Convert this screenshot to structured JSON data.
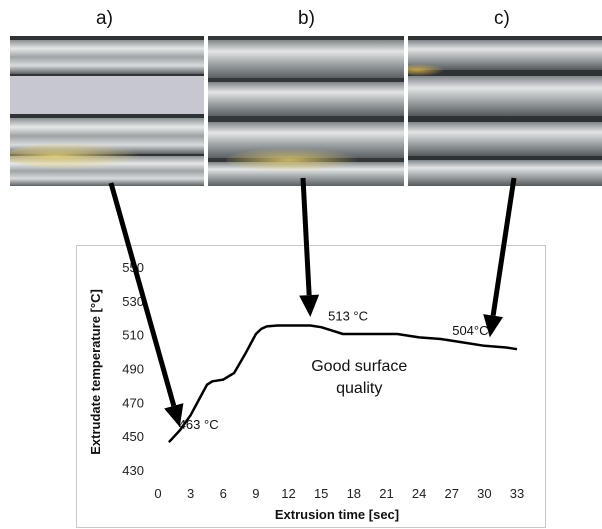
{
  "panels": [
    {
      "label": "a)",
      "photo": "extruded-profile-surface"
    },
    {
      "label": "b)",
      "photo": "extruded-profile-surface"
    },
    {
      "label": "c)",
      "photo": "extruded-profile-surface"
    }
  ],
  "colors": {
    "curve": "#000000",
    "arrow": "#000000",
    "frame": "#c8c8c8",
    "metal_dark": "#5a5f63",
    "metal_light": "#e6e8e8",
    "highlight": "#c9b05a"
  },
  "chart_data": {
    "type": "line",
    "title": "",
    "xlabel": "Extrusion time [sec]",
    "ylabel": "Extrudate temperature [°C]",
    "xlim": [
      0,
      33
    ],
    "ylim": [
      430,
      550
    ],
    "x_ticks": [
      "0",
      "3",
      "6",
      "9",
      "12",
      "15",
      "18",
      "21",
      "24",
      "27",
      "30",
      "33"
    ],
    "y_ticks": [
      "430",
      "450",
      "470",
      "490",
      "510",
      "530",
      "550"
    ],
    "grid": false,
    "legend": "none",
    "series": [
      {
        "x": [
          1,
          2,
          3,
          4,
          4.5,
          5,
          6,
          7,
          8,
          9,
          9.5,
          10,
          11,
          12,
          13,
          14,
          15,
          16,
          17,
          18,
          20,
          22,
          24,
          26,
          28,
          30,
          32,
          33
        ],
        "y": [
          447,
          454,
          463,
          475,
          481,
          483,
          484,
          488,
          499,
          511,
          514,
          515.5,
          516,
          516,
          516,
          516,
          515,
          513,
          511,
          511,
          511,
          511,
          509,
          508,
          506,
          504,
          503,
          502
        ]
      }
    ],
    "annotations": [
      {
        "text": "463 °C",
        "x": 3,
        "y": 463
      },
      {
        "text": "513 °C",
        "x": 16,
        "y": 513
      },
      {
        "text": "504°C",
        "x": 30,
        "y": 504
      },
      {
        "text_lines": [
          "Good surface",
          "quality"
        ],
        "x": 18.5,
        "y": 489
      }
    ],
    "arrows": [
      {
        "from_panel": "a)",
        "to_x": 2,
        "to_y": 456
      },
      {
        "from_panel": "b)",
        "to_x": 14,
        "to_y": 521
      },
      {
        "from_panel": "c)",
        "to_x": 30.5,
        "to_y": 509
      }
    ]
  }
}
